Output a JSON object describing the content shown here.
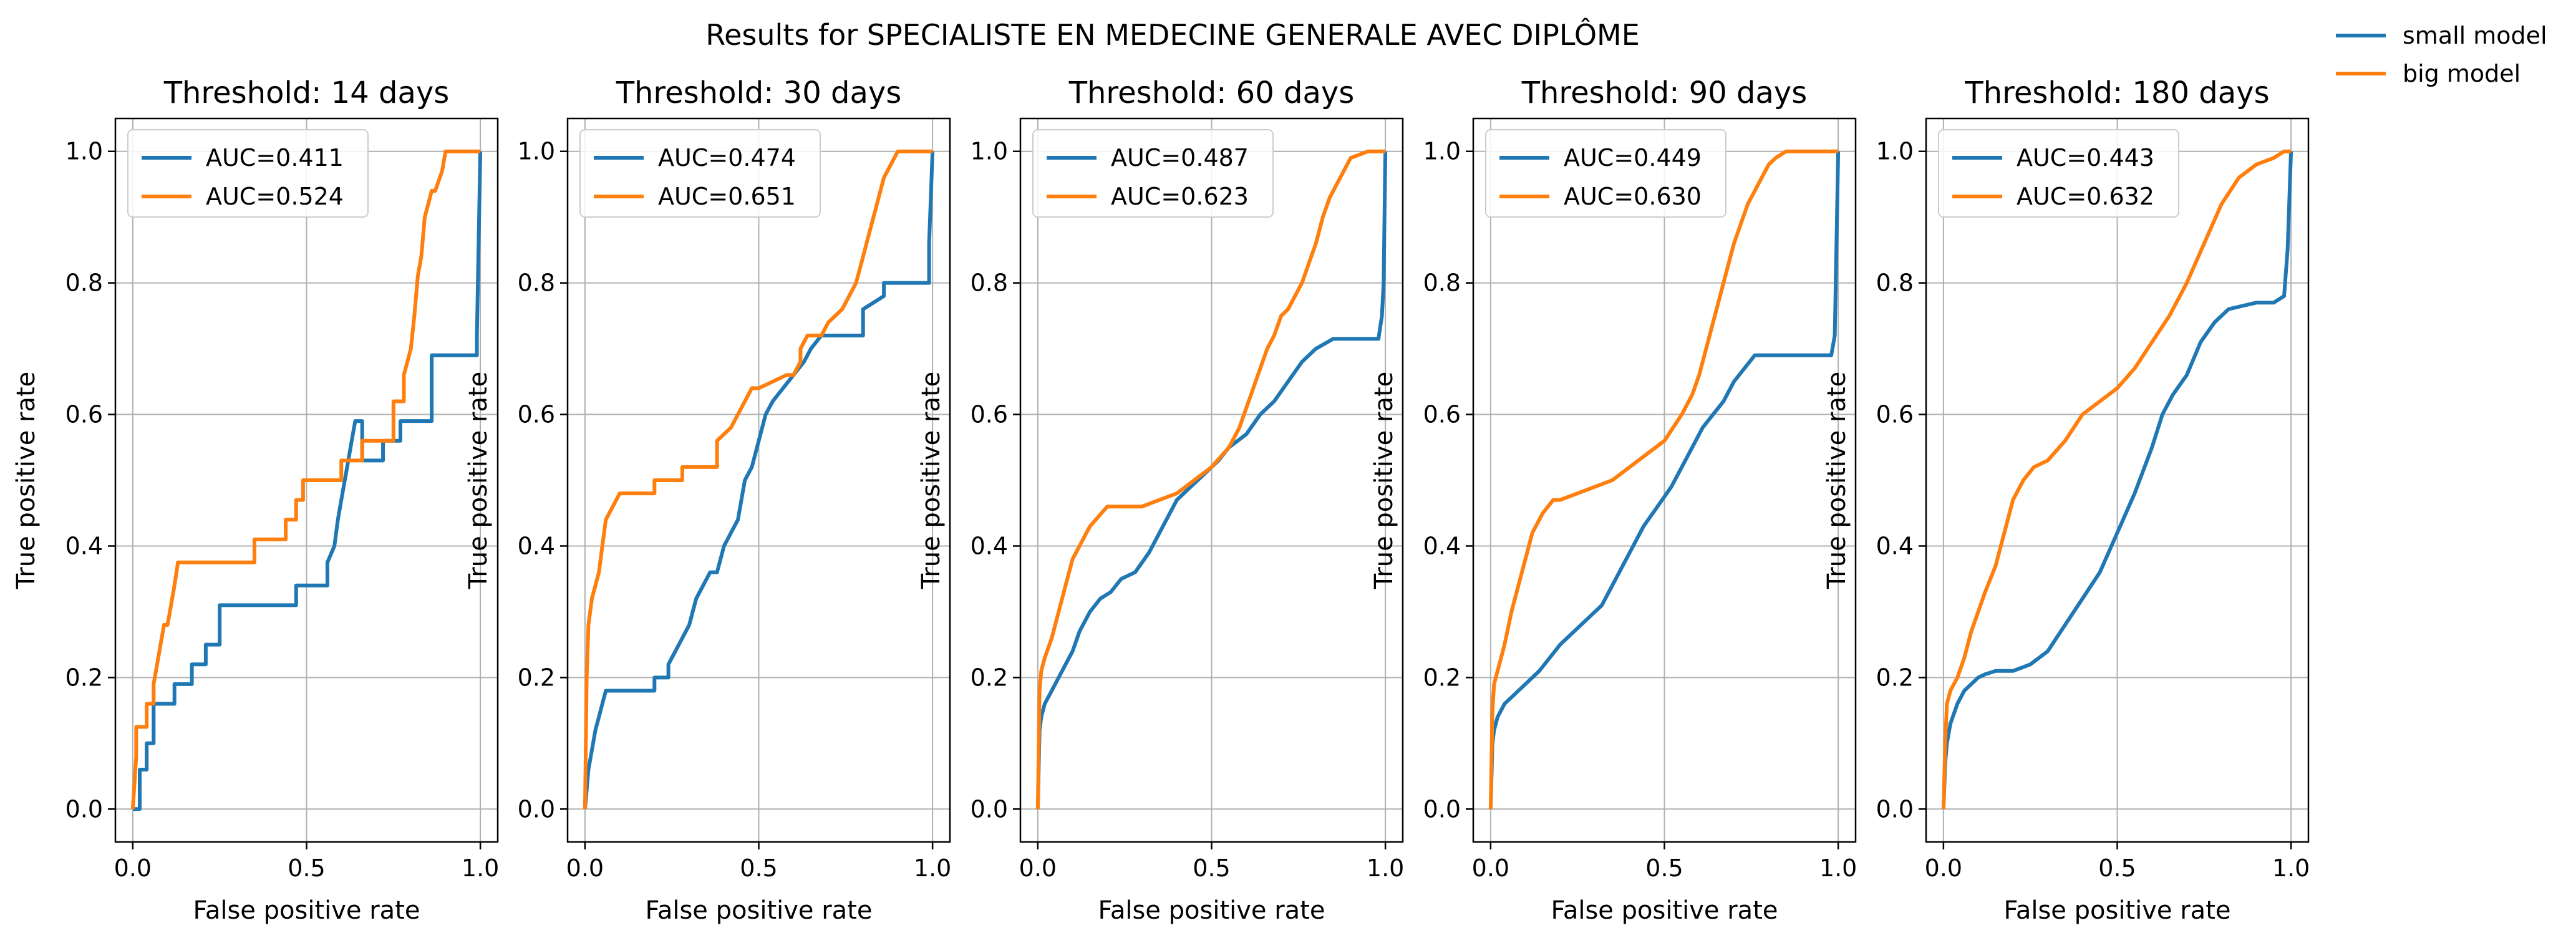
{
  "figure": {
    "suptitle": "Results for SPECIALISTE EN MEDECINE GENERALE AVEC DIPLÔME",
    "legend": [
      {
        "label": "small model",
        "color": "#1f77b4"
      },
      {
        "label": "big model",
        "color": "#ff7f0e"
      }
    ]
  },
  "chart_data": [
    {
      "type": "line",
      "title": "Threshold: 14 days",
      "xlabel": "False positive rate",
      "ylabel": "True positive rate",
      "xlim": [
        -0.05,
        1.05
      ],
      "ylim": [
        -0.05,
        1.05
      ],
      "xticks": [
        "0.0",
        "0.5",
        "1.0"
      ],
      "yticks": [
        "0.0",
        "0.2",
        "0.4",
        "0.6",
        "0.8",
        "1.0"
      ],
      "grid": true,
      "legend_location": "upper left",
      "series": [
        {
          "label": "AUC=0.411",
          "color": "#1f77b4",
          "x": [
            0,
            0.02,
            0.02,
            0.04,
            0.04,
            0.06,
            0.06,
            0.12,
            0.12,
            0.17,
            0.17,
            0.21,
            0.21,
            0.25,
            0.25,
            0.47,
            0.47,
            0.56,
            0.56,
            0.58,
            0.59,
            0.6,
            0.61,
            0.62,
            0.63,
            0.64,
            0.66,
            0.66,
            0.72,
            0.72,
            0.77,
            0.77,
            0.86,
            0.86,
            0.99,
            0.99,
            1.0
          ],
          "y": [
            0,
            0,
            0.06,
            0.06,
            0.1,
            0.1,
            0.16,
            0.16,
            0.19,
            0.19,
            0.22,
            0.22,
            0.25,
            0.25,
            0.31,
            0.31,
            0.34,
            0.34,
            0.375,
            0.4,
            0.44,
            0.47,
            0.5,
            0.53,
            0.56,
            0.59,
            0.59,
            0.53,
            0.53,
            0.56,
            0.56,
            0.59,
            0.59,
            0.69,
            0.69,
            0.72,
            1.0
          ]
        },
        {
          "label": "AUC=0.524",
          "color": "#ff7f0e",
          "x": [
            0,
            0.01,
            0.01,
            0.04,
            0.04,
            0.06,
            0.06,
            0.07,
            0.08,
            0.09,
            0.1,
            0.11,
            0.12,
            0.13,
            0.14,
            0.15,
            0.35,
            0.35,
            0.44,
            0.44,
            0.47,
            0.47,
            0.49,
            0.49,
            0.6,
            0.6,
            0.66,
            0.66,
            0.75,
            0.75,
            0.78,
            0.78,
            0.8,
            0.81,
            0.82,
            0.83,
            0.84,
            0.86,
            0.87,
            0.89,
            0.9,
            1.0
          ],
          "y": [
            0,
            0.08,
            0.125,
            0.125,
            0.16,
            0.16,
            0.19,
            0.22,
            0.25,
            0.28,
            0.28,
            0.31,
            0.34,
            0.375,
            0.375,
            0.375,
            0.375,
            0.41,
            0.41,
            0.44,
            0.44,
            0.47,
            0.47,
            0.5,
            0.5,
            0.53,
            0.53,
            0.56,
            0.56,
            0.62,
            0.62,
            0.66,
            0.7,
            0.75,
            0.81,
            0.84,
            0.9,
            0.94,
            0.94,
            0.97,
            1.0,
            1.0
          ]
        }
      ]
    },
    {
      "type": "line",
      "title": "Threshold: 30 days",
      "xlabel": "False positive rate",
      "ylabel": "True positive rate",
      "xlim": [
        -0.05,
        1.05
      ],
      "ylim": [
        -0.05,
        1.05
      ],
      "xticks": [
        "0.0",
        "0.5",
        "1.0"
      ],
      "yticks": [
        "0.0",
        "0.2",
        "0.4",
        "0.6",
        "0.8",
        "1.0"
      ],
      "grid": true,
      "legend_location": "upper left",
      "series": [
        {
          "label": "AUC=0.474",
          "color": "#1f77b4",
          "x": [
            0,
            0.01,
            0.02,
            0.03,
            0.04,
            0.05,
            0.06,
            0.07,
            0.09,
            0.2,
            0.2,
            0.24,
            0.24,
            0.28,
            0.3,
            0.32,
            0.34,
            0.36,
            0.38,
            0.4,
            0.42,
            0.44,
            0.46,
            0.48,
            0.5,
            0.52,
            0.54,
            0.57,
            0.6,
            0.63,
            0.65,
            0.68,
            0.7,
            0.8,
            0.8,
            0.86,
            0.86,
            0.99,
            0.99,
            1.0
          ],
          "y": [
            0,
            0.06,
            0.09,
            0.12,
            0.14,
            0.16,
            0.18,
            0.18,
            0.18,
            0.18,
            0.2,
            0.2,
            0.22,
            0.26,
            0.28,
            0.32,
            0.34,
            0.36,
            0.36,
            0.4,
            0.42,
            0.44,
            0.5,
            0.52,
            0.56,
            0.6,
            0.62,
            0.64,
            0.66,
            0.68,
            0.7,
            0.72,
            0.72,
            0.72,
            0.76,
            0.78,
            0.8,
            0.8,
            0.86,
            1.0
          ]
        },
        {
          "label": "AUC=0.651",
          "color": "#ff7f0e",
          "x": [
            0,
            0.005,
            0.01,
            0.02,
            0.03,
            0.04,
            0.05,
            0.06,
            0.08,
            0.1,
            0.1,
            0.2,
            0.2,
            0.28,
            0.28,
            0.38,
            0.38,
            0.42,
            0.44,
            0.46,
            0.48,
            0.5,
            0.5,
            0.58,
            0.6,
            0.62,
            0.62,
            0.64,
            0.66,
            0.68,
            0.7,
            0.74,
            0.76,
            0.78,
            0.8,
            0.82,
            0.84,
            0.86,
            0.88,
            0.9,
            0.92,
            1.0
          ],
          "y": [
            0,
            0.2,
            0.28,
            0.32,
            0.34,
            0.36,
            0.4,
            0.44,
            0.46,
            0.48,
            0.48,
            0.48,
            0.5,
            0.5,
            0.52,
            0.52,
            0.56,
            0.58,
            0.6,
            0.62,
            0.64,
            0.64,
            0.64,
            0.66,
            0.66,
            0.68,
            0.7,
            0.72,
            0.72,
            0.72,
            0.74,
            0.76,
            0.78,
            0.8,
            0.84,
            0.88,
            0.92,
            0.96,
            0.98,
            1.0,
            1.0,
            1.0
          ]
        }
      ]
    },
    {
      "type": "line",
      "title": "Threshold: 60 days",
      "xlabel": "False positive rate",
      "ylabel": "True positive rate",
      "xlim": [
        -0.05,
        1.05
      ],
      "ylim": [
        -0.05,
        1.05
      ],
      "xticks": [
        "0.0",
        "0.5",
        "1.0"
      ],
      "yticks": [
        "0.0",
        "0.2",
        "0.4",
        "0.6",
        "0.8",
        "1.0"
      ],
      "grid": true,
      "legend_location": "upper left",
      "series": [
        {
          "label": "AUC=0.487",
          "color": "#1f77b4",
          "x": [
            0,
            0.005,
            0.01,
            0.02,
            0.04,
            0.06,
            0.08,
            0.1,
            0.12,
            0.15,
            0.18,
            0.21,
            0.24,
            0.28,
            0.32,
            0.36,
            0.4,
            0.44,
            0.48,
            0.52,
            0.55,
            0.6,
            0.64,
            0.68,
            0.72,
            0.76,
            0.8,
            0.85,
            0.9,
            0.98,
            0.99,
            0.995,
            1.0
          ],
          "y": [
            0,
            0.12,
            0.14,
            0.16,
            0.18,
            0.2,
            0.22,
            0.24,
            0.27,
            0.3,
            0.32,
            0.33,
            0.35,
            0.36,
            0.39,
            0.43,
            0.47,
            0.49,
            0.51,
            0.53,
            0.55,
            0.57,
            0.6,
            0.62,
            0.65,
            0.68,
            0.7,
            0.715,
            0.715,
            0.715,
            0.75,
            0.8,
            1.0
          ]
        },
        {
          "label": "AUC=0.623",
          "color": "#ff7f0e",
          "x": [
            0,
            0.005,
            0.01,
            0.02,
            0.04,
            0.06,
            0.08,
            0.1,
            0.12,
            0.15,
            0.2,
            0.25,
            0.3,
            0.35,
            0.4,
            0.45,
            0.5,
            0.55,
            0.58,
            0.6,
            0.62,
            0.64,
            0.66,
            0.68,
            0.7,
            0.72,
            0.74,
            0.76,
            0.78,
            0.8,
            0.82,
            0.84,
            0.86,
            0.88,
            0.9,
            0.95,
            0.99,
            1.0
          ],
          "y": [
            0,
            0.18,
            0.21,
            0.23,
            0.26,
            0.3,
            0.34,
            0.38,
            0.4,
            0.43,
            0.46,
            0.46,
            0.46,
            0.47,
            0.48,
            0.5,
            0.52,
            0.55,
            0.58,
            0.61,
            0.64,
            0.67,
            0.7,
            0.72,
            0.75,
            0.76,
            0.78,
            0.8,
            0.83,
            0.86,
            0.9,
            0.93,
            0.95,
            0.97,
            0.99,
            1.0,
            1.0,
            1.0
          ]
        }
      ]
    },
    {
      "type": "line",
      "title": "Threshold: 90 days",
      "xlabel": "False positive rate",
      "ylabel": "True positive rate",
      "xlim": [
        -0.05,
        1.05
      ],
      "ylim": [
        -0.05,
        1.05
      ],
      "xticks": [
        "0.0",
        "0.5",
        "1.0"
      ],
      "yticks": [
        "0.0",
        "0.2",
        "0.4",
        "0.6",
        "0.8",
        "1.0"
      ],
      "grid": true,
      "legend_location": "upper left",
      "series": [
        {
          "label": "AUC=0.449",
          "color": "#1f77b4",
          "x": [
            0,
            0.005,
            0.01,
            0.02,
            0.04,
            0.06,
            0.08,
            0.1,
            0.12,
            0.14,
            0.17,
            0.2,
            0.24,
            0.28,
            0.32,
            0.36,
            0.4,
            0.44,
            0.48,
            0.52,
            0.55,
            0.58,
            0.61,
            0.64,
            0.67,
            0.7,
            0.73,
            0.76,
            0.8,
            0.85,
            0.9,
            0.98,
            0.99,
            1.0
          ],
          "y": [
            0,
            0.1,
            0.12,
            0.14,
            0.16,
            0.17,
            0.18,
            0.19,
            0.2,
            0.21,
            0.23,
            0.25,
            0.27,
            0.29,
            0.31,
            0.35,
            0.39,
            0.43,
            0.46,
            0.49,
            0.52,
            0.55,
            0.58,
            0.6,
            0.62,
            0.65,
            0.67,
            0.69,
            0.69,
            0.69,
            0.69,
            0.69,
            0.72,
            1.0
          ]
        },
        {
          "label": "AUC=0.630",
          "color": "#ff7f0e",
          "x": [
            0,
            0.005,
            0.01,
            0.02,
            0.04,
            0.06,
            0.08,
            0.1,
            0.12,
            0.15,
            0.18,
            0.2,
            0.25,
            0.3,
            0.35,
            0.4,
            0.45,
            0.5,
            0.55,
            0.58,
            0.6,
            0.62,
            0.64,
            0.66,
            0.68,
            0.7,
            0.72,
            0.74,
            0.76,
            0.78,
            0.8,
            0.82,
            0.85,
            0.88,
            0.9,
            0.95,
            1.0
          ],
          "y": [
            0,
            0.15,
            0.19,
            0.21,
            0.25,
            0.3,
            0.34,
            0.38,
            0.42,
            0.45,
            0.47,
            0.47,
            0.48,
            0.49,
            0.5,
            0.52,
            0.54,
            0.56,
            0.6,
            0.63,
            0.66,
            0.7,
            0.74,
            0.78,
            0.82,
            0.86,
            0.89,
            0.92,
            0.94,
            0.96,
            0.98,
            0.99,
            1.0,
            1.0,
            1.0,
            1.0,
            1.0
          ]
        }
      ]
    },
    {
      "type": "line",
      "title": "Threshold: 180 days",
      "xlabel": "False positive rate",
      "ylabel": "True positive rate",
      "xlim": [
        -0.05,
        1.05
      ],
      "ylim": [
        -0.05,
        1.05
      ],
      "xticks": [
        "0.0",
        "0.5",
        "1.0"
      ],
      "yticks": [
        "0.0",
        "0.2",
        "0.4",
        "0.6",
        "0.8",
        "1.0"
      ],
      "grid": true,
      "legend_location": "upper left",
      "series": [
        {
          "label": "AUC=0.443",
          "color": "#1f77b4",
          "x": [
            0,
            0.005,
            0.01,
            0.02,
            0.04,
            0.06,
            0.08,
            0.1,
            0.12,
            0.15,
            0.2,
            0.25,
            0.3,
            0.35,
            0.4,
            0.45,
            0.5,
            0.55,
            0.6,
            0.63,
            0.66,
            0.7,
            0.74,
            0.78,
            0.82,
            0.86,
            0.9,
            0.95,
            0.98,
            0.99,
            1.0
          ],
          "y": [
            0,
            0.07,
            0.1,
            0.13,
            0.16,
            0.18,
            0.19,
            0.2,
            0.205,
            0.21,
            0.21,
            0.22,
            0.24,
            0.28,
            0.32,
            0.36,
            0.42,
            0.48,
            0.55,
            0.6,
            0.63,
            0.66,
            0.71,
            0.74,
            0.76,
            0.765,
            0.77,
            0.77,
            0.78,
            0.85,
            1.0
          ]
        },
        {
          "label": "AUC=0.632",
          "color": "#ff7f0e",
          "x": [
            0,
            0.005,
            0.01,
            0.02,
            0.04,
            0.06,
            0.08,
            0.1,
            0.12,
            0.15,
            0.18,
            0.2,
            0.23,
            0.26,
            0.3,
            0.35,
            0.4,
            0.45,
            0.5,
            0.55,
            0.6,
            0.65,
            0.7,
            0.75,
            0.8,
            0.85,
            0.9,
            0.95,
            0.98,
            1.0
          ],
          "y": [
            0,
            0.1,
            0.16,
            0.18,
            0.2,
            0.23,
            0.27,
            0.3,
            0.33,
            0.37,
            0.43,
            0.47,
            0.5,
            0.52,
            0.53,
            0.56,
            0.6,
            0.62,
            0.64,
            0.67,
            0.71,
            0.75,
            0.8,
            0.86,
            0.92,
            0.96,
            0.98,
            0.99,
            1.0,
            1.0
          ]
        }
      ]
    }
  ]
}
